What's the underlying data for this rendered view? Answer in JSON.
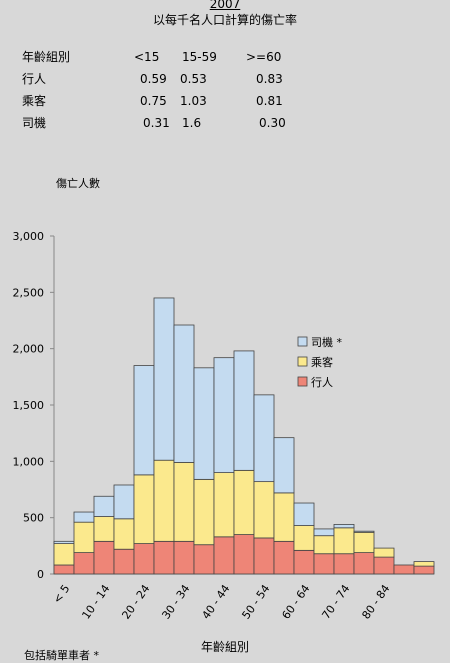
{
  "header": {
    "year": "2007",
    "subtitle": "以每千名人口計算的傷亡率"
  },
  "rate_table": {
    "columns": [
      "年齡組別",
      "<15",
      "15-59",
      ">=60"
    ],
    "rows": [
      {
        "label": "行人",
        "values": [
          "0.59",
          "0.53",
          "0.83"
        ]
      },
      {
        "label": "乘客",
        "values": [
          "0.75",
          "1.03",
          "0.81"
        ]
      },
      {
        "label": "司機",
        "values": [
          "0.31",
          "1.6",
          "0.30"
        ]
      }
    ]
  },
  "footnote": "包括騎單車者 *",
  "chart_data": {
    "type": "bar",
    "stacked": true,
    "ylabel": "傷亡人數",
    "xlabel": "年齡組別",
    "ylim": [
      0,
      3000
    ],
    "yticks": [
      0,
      500,
      1000,
      1500,
      2000,
      2500,
      3000
    ],
    "ytick_labels": [
      "0",
      "500",
      "1,000",
      "1,500",
      "2,000",
      "2,500",
      "3,000"
    ],
    "categories": [
      "< 5",
      "5 - 9",
      "10 - 14",
      "15 - 19",
      "20 - 24",
      "25 - 29",
      "30 - 34",
      "35 - 39",
      "40 - 44",
      "45 - 49",
      "50 - 54",
      "55 - 59",
      "60 - 64",
      "65 - 69",
      "70 - 74",
      "75 - 79",
      "80 - 84",
      "85 - 89",
      ">= 90"
    ],
    "shown_tick_labels": [
      "< 5",
      "10 - 14",
      "20 - 24",
      "30 - 34",
      "40 - 44",
      "50 - 54",
      "60 - 64",
      "70 - 74",
      "80 - 84"
    ],
    "legend_position": "right",
    "series": [
      {
        "name": "行人",
        "color": "#ee8577",
        "values": [
          80,
          190,
          290,
          220,
          270,
          290,
          290,
          260,
          330,
          350,
          320,
          290,
          210,
          180,
          180,
          190,
          150,
          80,
          70
        ]
      },
      {
        "name": "乘客",
        "color": "#fbe98d",
        "values": [
          190,
          270,
          220,
          270,
          610,
          720,
          700,
          580,
          570,
          570,
          500,
          430,
          220,
          160,
          230,
          180,
          80,
          0,
          40
        ]
      },
      {
        "name": "司機 *",
        "color": "#c4dbf0",
        "values": [
          20,
          90,
          180,
          300,
          970,
          1440,
          1220,
          990,
          1020,
          1060,
          770,
          490,
          200,
          60,
          30,
          10,
          0,
          0,
          0
        ]
      }
    ]
  }
}
